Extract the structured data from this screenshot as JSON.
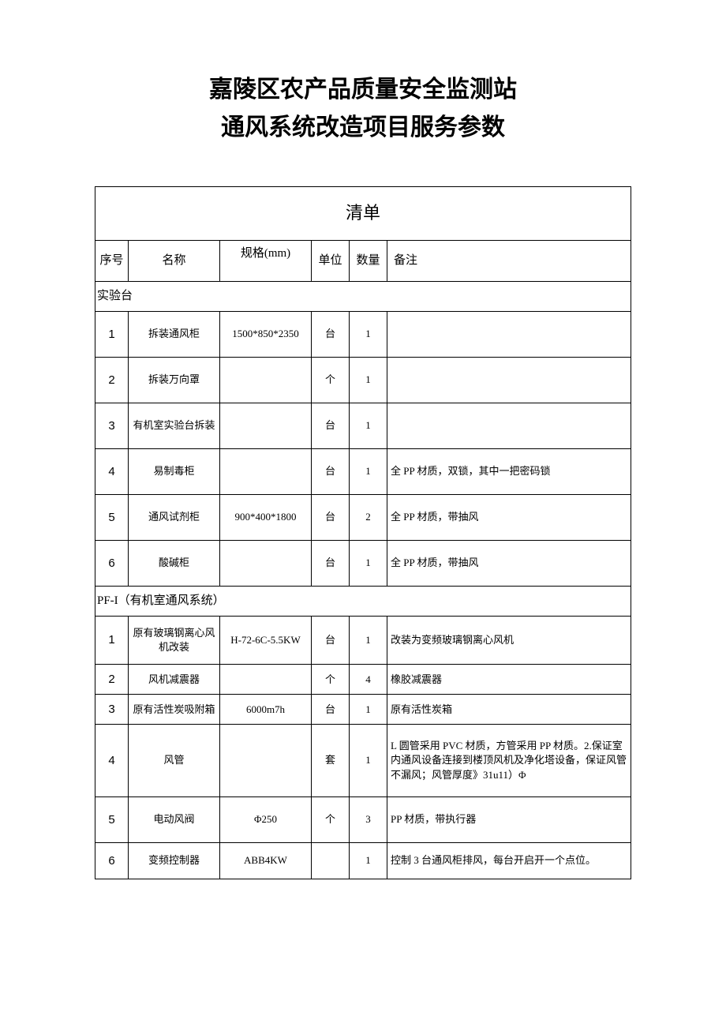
{
  "title": {
    "line1": "嘉陵区农产品质量安全监测站",
    "line2": "通风系统改造项目服务参数"
  },
  "table": {
    "caption": "清单",
    "headers": {
      "seq": "序号",
      "name": "名称",
      "spec": "规格(mm)",
      "unit": "单位",
      "qty": "数量",
      "remark": "备注"
    },
    "sections": [
      {
        "title": "实验台",
        "rows": [
          {
            "seq": "1",
            "name": "拆装通风柜",
            "spec": "1500*850*2350",
            "unit": "台",
            "qty": "1",
            "remark": ""
          },
          {
            "seq": "2",
            "name": "拆装万向罩",
            "spec": "",
            "unit": "个",
            "qty": "1",
            "remark": ""
          },
          {
            "seq": "3",
            "name": "有机室实验台拆装",
            "spec": "",
            "unit": "台",
            "qty": "1",
            "remark": ""
          },
          {
            "seq": "4",
            "name": "易制毒柜",
            "spec": "",
            "unit": "台",
            "qty": "1",
            "remark": "全 PP 材质，双锁，其中一把密码锁"
          },
          {
            "seq": "5",
            "name": "通风试剂柜",
            "spec": "900*400*1800",
            "unit": "台",
            "qty": "2",
            "remark": "全 PP 材质，带抽风"
          },
          {
            "seq": "6",
            "name": "酸碱柜",
            "spec": "",
            "unit": "台",
            "qty": "1",
            "remark": "全 PP 材质，带抽风"
          }
        ]
      },
      {
        "title": "PF-I（有机室通风系统）",
        "rows": [
          {
            "seq": "1",
            "name": "原有玻璃钢离心风机改装",
            "spec": "H-72-6C-5.5KW",
            "unit": "台",
            "qty": "1",
            "remark": "改装为变频玻璃钢离心风机",
            "tight": "medium"
          },
          {
            "seq": "2",
            "name": "风机减震器",
            "spec": "",
            "unit": "个",
            "qty": "4",
            "remark": "橡胶减震器",
            "tight": "tight"
          },
          {
            "seq": "3",
            "name": "原有活性炭吸附箱",
            "spec": "6000m7h",
            "unit": "台",
            "qty": "1",
            "remark": "原有活性炭箱",
            "tight": "tight"
          },
          {
            "seq": "4",
            "name": "风管",
            "spec": "",
            "unit": "套",
            "qty": "1",
            "remark": "L 圆管采用 PVC 材质，方管采用 PP 材质。2.保证室内通风设备连接到楼顶风机及净化塔设备，保证风管不漏风；风管厚度》31u11）Φ"
          },
          {
            "seq": "5",
            "name": "电动风阀",
            "spec": "Φ250",
            "unit": "个",
            "qty": "3",
            "remark": "PP 材质，带执行器"
          },
          {
            "seq": "6",
            "name": "变频控制器",
            "spec": "ABB4KW",
            "unit": "",
            "qty": "1",
            "remark": "控制 3 台通风柜排风，每台开启开一个点位。",
            "tight": "medium"
          }
        ]
      }
    ]
  }
}
